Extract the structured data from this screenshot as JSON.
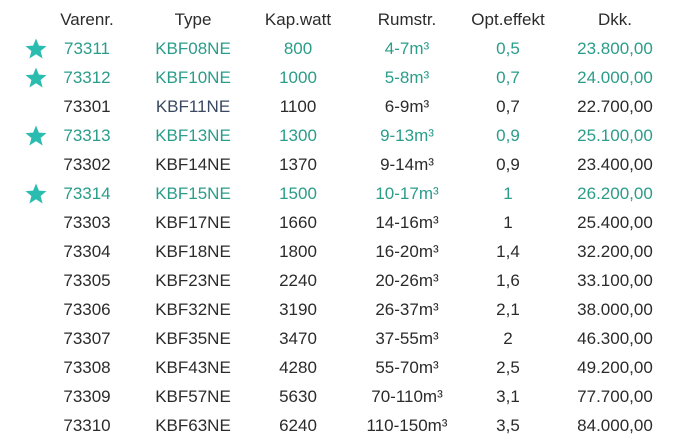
{
  "table": {
    "headers": {
      "varenr": "Varenr.",
      "type": "Type",
      "kap": "Kap.watt",
      "rum": "Rumstr.",
      "opt": "Opt.effekt",
      "dkk": "Dkk."
    },
    "rows": [
      {
        "varenr": "73311",
        "type": "KBF08NE",
        "kap": "800",
        "rum": "4-7m³",
        "opt": "0,5",
        "dkk": "23.800,00",
        "starred": true
      },
      {
        "varenr": "73312",
        "type": "KBF10NE",
        "kap": "1000",
        "rum": "5-8m³",
        "opt": "0,7",
        "dkk": "24.000,00",
        "starred": true
      },
      {
        "varenr": "73301",
        "type": "KBF11NE",
        "kap": "1100",
        "rum": "6-9m³",
        "opt": "0,7",
        "dkk": "22.700,00",
        "starred": false
      },
      {
        "varenr": "73313",
        "type": "KBF13NE",
        "kap": "1300",
        "rum": "9-13m³",
        "opt": "0,9",
        "dkk": "25.100,00",
        "starred": true
      },
      {
        "varenr": "73302",
        "type": "KBF14NE",
        "kap": "1370",
        "rum": "9-14m³",
        "opt": "0,9",
        "dkk": "23.400,00",
        "starred": false
      },
      {
        "varenr": "73314",
        "type": "KBF15NE",
        "kap": "1500",
        "rum": "10-17m³",
        "opt": "1",
        "dkk": "26.200,00",
        "starred": true
      },
      {
        "varenr": "73303",
        "type": "KBF17NE",
        "kap": "1660",
        "rum": "14-16m³",
        "opt": "1",
        "dkk": "25.400,00",
        "starred": false
      },
      {
        "varenr": "73304",
        "type": "KBF18NE",
        "kap": "1800",
        "rum": "16-20m³",
        "opt": "1,4",
        "dkk": "32.200,00",
        "starred": false
      },
      {
        "varenr": "73305",
        "type": "KBF23NE",
        "kap": "2240",
        "rum": "20-26m³",
        "opt": "1,6",
        "dkk": "33.100,00",
        "starred": false
      },
      {
        "varenr": "73306",
        "type": "KBF32NE",
        "kap": "3190",
        "rum": "26-37m³",
        "opt": "2,1",
        "dkk": "38.000,00",
        "starred": false
      },
      {
        "varenr": "73307",
        "type": "KBF35NE",
        "kap": "3470",
        "rum": "37-55m³",
        "opt": "2",
        "dkk": "46.300,00",
        "starred": false
      },
      {
        "varenr": "73308",
        "type": "KBF43NE",
        "kap": "4280",
        "rum": "55-70m³",
        "opt": "2,5",
        "dkk": "49.200,00",
        "starred": false
      },
      {
        "varenr": "73309",
        "type": "KBF57NE",
        "kap": "5630",
        "rum": "70-110m³",
        "opt": "3,1",
        "dkk": "77.700,00",
        "starred": false
      },
      {
        "varenr": "73310",
        "type": "KBF63NE",
        "kap": "6240",
        "rum": "110-150m³",
        "opt": "3,5",
        "dkk": "84.000,00",
        "starred": false
      }
    ]
  },
  "colors": {
    "highlight": "#2a9d8a",
    "star": "#2bbcb0",
    "text": "#2b2b2b"
  },
  "icons": {
    "star": "star-icon"
  }
}
